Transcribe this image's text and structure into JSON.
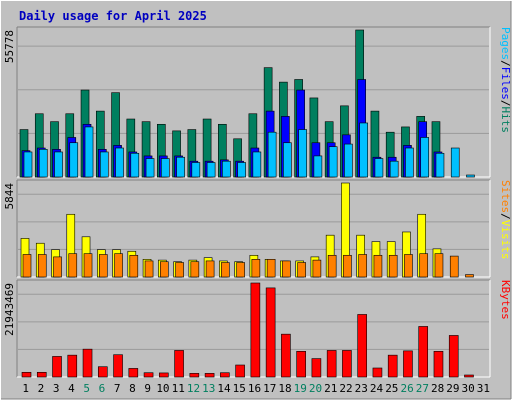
{
  "title": "Daily usage for April 2025",
  "colors": {
    "background": "#c0c0c0",
    "plot_bg": "#c0c0c0",
    "grid": "#9a9a9a",
    "title": "#0000c0",
    "hits": "#007f5f",
    "files": "#0000ff",
    "pages": "#00c0ff",
    "visits": "#ffff00",
    "sites": "#ff8000",
    "kbytes": "#ff0000",
    "weekend_day_label": "#007f5f",
    "day_label": "#000000"
  },
  "chart_data": [
    {
      "type": "bar",
      "name": "hits-files-pages",
      "categories": [
        "1",
        "2",
        "3",
        "4",
        "5",
        "6",
        "7",
        "8",
        "9",
        "10",
        "11",
        "12",
        "13",
        "14",
        "15",
        "16",
        "17",
        "18",
        "19",
        "20",
        "21",
        "22",
        "23",
        "24",
        "25",
        "26",
        "27",
        "28",
        "29",
        "30",
        "31"
      ],
      "ylabel_parts": [
        {
          "text": "Hits",
          "color": "#007f5f"
        },
        {
          "text": "/",
          "color": "#000000"
        },
        {
          "text": "Files",
          "color": "#0000ff"
        },
        {
          "text": "/",
          "color": "#000000"
        },
        {
          "text": "Pages",
          "color": "#00c0ff"
        }
      ],
      "max_label": "55778",
      "ylim": [
        0,
        55778
      ],
      "series": [
        {
          "name": "Hits",
          "color": "#007f5f",
          "values": [
            18000,
            24000,
            21000,
            24000,
            33000,
            25000,
            32000,
            22000,
            21000,
            20000,
            17500,
            18000,
            22000,
            20000,
            14500,
            24000,
            41500,
            36000,
            37000,
            30000,
            21000,
            27000,
            55778,
            25000,
            17000,
            19000,
            23000,
            21000,
            0,
            0,
            0
          ]
        },
        {
          "name": "Files",
          "color": "#0000ff",
          "values": [
            10000,
            11000,
            10500,
            15000,
            20000,
            10500,
            12000,
            9500,
            8000,
            8000,
            8000,
            6000,
            6000,
            6500,
            6000,
            11000,
            25000,
            23000,
            33000,
            13000,
            13000,
            16000,
            37000,
            7500,
            7500,
            12000,
            21000,
            9500,
            0,
            0,
            0
          ]
        },
        {
          "name": "Pages",
          "color": "#00c0ff",
          "values": [
            9500,
            10500,
            9500,
            13000,
            19000,
            9500,
            11000,
            9000,
            7000,
            7000,
            7500,
            5500,
            5500,
            6000,
            5500,
            9500,
            17000,
            13000,
            18000,
            8000,
            11500,
            12500,
            20500,
            7000,
            6000,
            11000,
            15000,
            9000,
            11000,
            500,
            0
          ]
        }
      ]
    },
    {
      "type": "bar",
      "name": "visits-sites",
      "categories": [
        "1",
        "2",
        "3",
        "4",
        "5",
        "6",
        "7",
        "8",
        "9",
        "10",
        "11",
        "12",
        "13",
        "14",
        "15",
        "16",
        "17",
        "18",
        "19",
        "20",
        "21",
        "22",
        "23",
        "24",
        "25",
        "26",
        "27",
        "28",
        "29",
        "30",
        "31"
      ],
      "ylabel_parts": [
        {
          "text": "Visits",
          "color": "#ffff00"
        },
        {
          "text": "/",
          "color": "#000000"
        },
        {
          "text": "Sites",
          "color": "#ff8000"
        }
      ],
      "max_label": "5844",
      "ylim": [
        0,
        5844
      ],
      "series": [
        {
          "name": "Visits",
          "color": "#ffff00",
          "values": [
            2400,
            2100,
            1700,
            3900,
            2500,
            1700,
            1700,
            1600,
            1100,
            1050,
            950,
            1050,
            1200,
            1000,
            950,
            1350,
            1100,
            1000,
            1000,
            1250,
            2600,
            5844,
            2600,
            2200,
            2200,
            2800,
            3900,
            1750,
            0,
            0,
            0
          ]
        },
        {
          "name": "Sites",
          "color": "#ff8000",
          "values": [
            1400,
            1400,
            1250,
            1450,
            1450,
            1400,
            1450,
            1350,
            1000,
            950,
            900,
            950,
            1000,
            900,
            900,
            1100,
            1100,
            1000,
            900,
            1050,
            1350,
            1350,
            1400,
            1350,
            1350,
            1400,
            1450,
            1450,
            1300,
            150,
            0
          ]
        }
      ]
    },
    {
      "type": "bar",
      "name": "kbytes",
      "categories": [
        "1",
        "2",
        "3",
        "4",
        "5",
        "6",
        "7",
        "8",
        "9",
        "10",
        "11",
        "12",
        "13",
        "14",
        "15",
        "16",
        "17",
        "18",
        "19",
        "20",
        "21",
        "22",
        "23",
        "24",
        "25",
        "26",
        "27",
        "28",
        "29",
        "30",
        "31"
      ],
      "ylabel_parts": [
        {
          "text": "KBytes",
          "color": "#ff0000"
        }
      ],
      "max_label": "21943469",
      "ylim": [
        0,
        21943469
      ],
      "series": [
        {
          "name": "KBytes",
          "color": "#ff0000",
          "values": [
            1100000,
            1100000,
            4800000,
            5100000,
            6500000,
            2400000,
            5200000,
            2000000,
            1000000,
            950000,
            6200000,
            850000,
            850000,
            1000000,
            2800000,
            21943469,
            20800000,
            10000000,
            6000000,
            4300000,
            6200000,
            6200000,
            14600000,
            2100000,
            5100000,
            6100000,
            11800000,
            6000000,
            9700000,
            300000,
            0
          ]
        }
      ]
    }
  ],
  "weekend_days": [
    5,
    6,
    12,
    13,
    19,
    20,
    26,
    27
  ]
}
